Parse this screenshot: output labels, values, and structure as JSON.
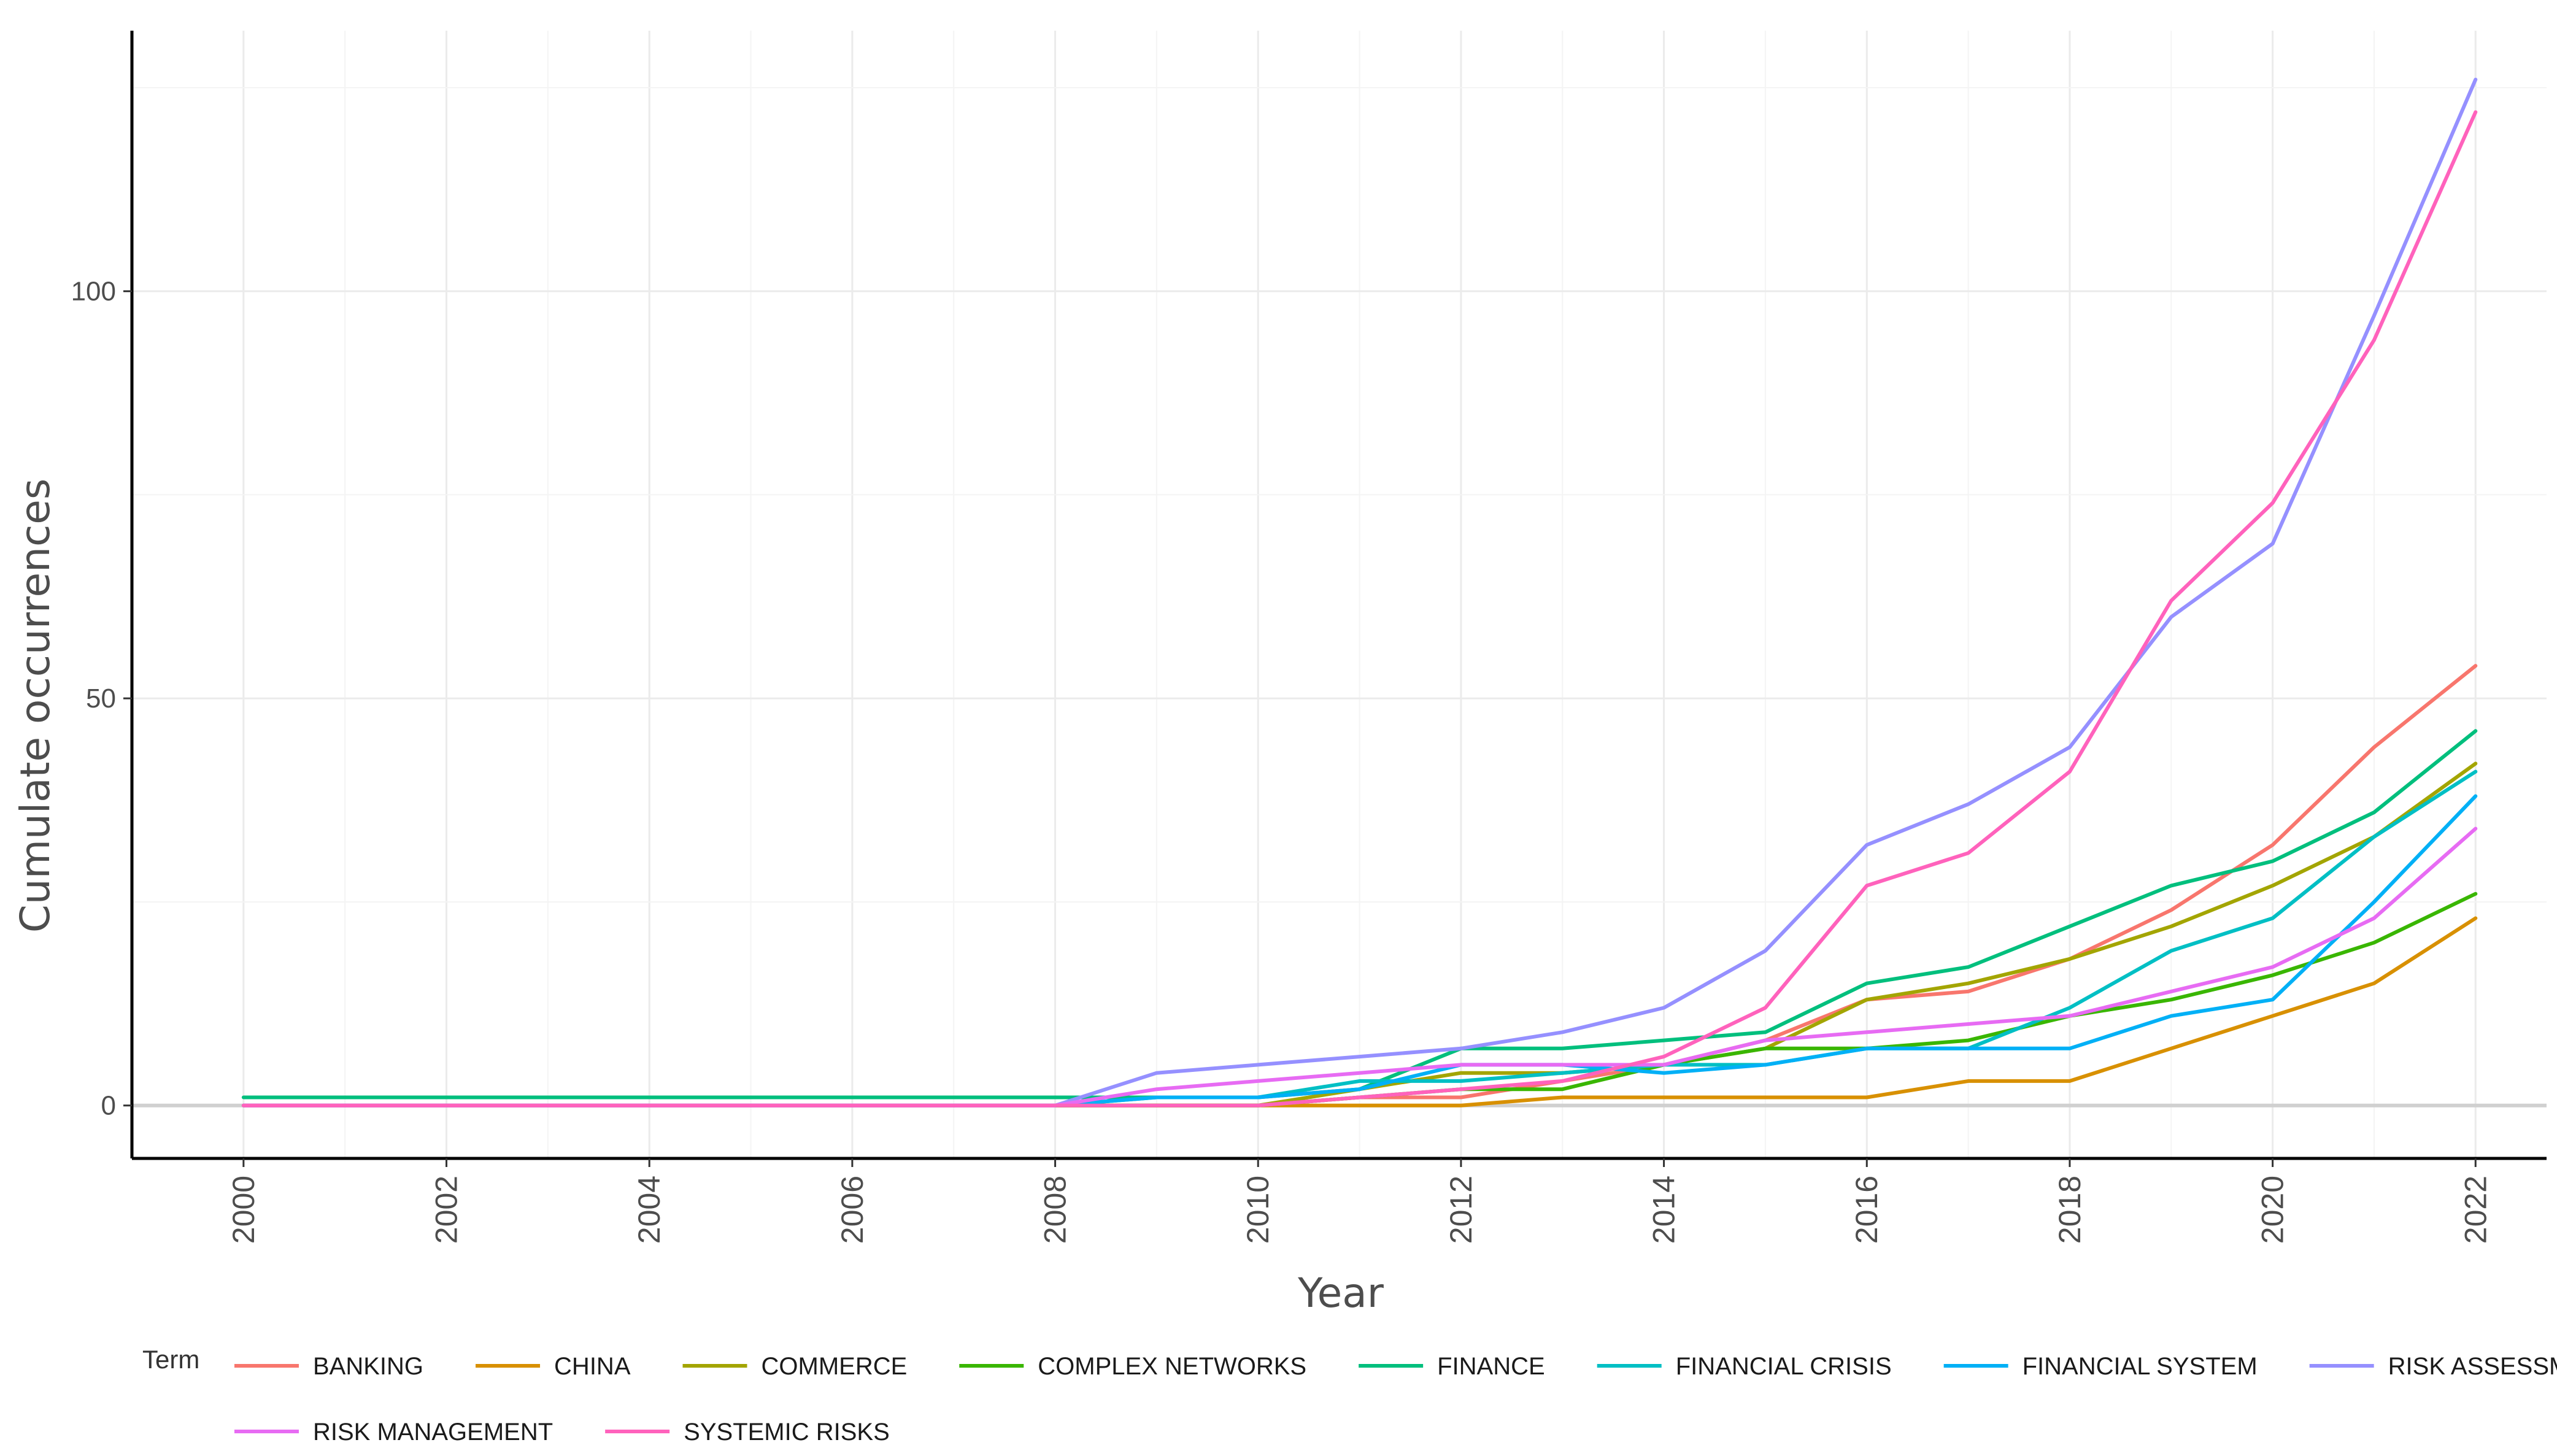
{
  "chart_data": {
    "type": "line",
    "title": "",
    "xlabel": "Year",
    "ylabel": "Cumulate occurrences",
    "x": [
      2000,
      2001,
      2002,
      2003,
      2004,
      2005,
      2006,
      2007,
      2008,
      2009,
      2010,
      2011,
      2012,
      2013,
      2014,
      2015,
      2016,
      2017,
      2018,
      2019,
      2020,
      2021,
      2022
    ],
    "xticks": [
      2000,
      2002,
      2004,
      2006,
      2008,
      2010,
      2012,
      2014,
      2016,
      2018,
      2020,
      2022
    ],
    "yticks": [
      0,
      50,
      100
    ],
    "xlim": [
      1998.9,
      2022.7
    ],
    "ylim": [
      -6.5,
      132
    ],
    "grid": true,
    "legend_title": "Term",
    "legend_position": "bottom",
    "series": [
      {
        "name": "BANKING",
        "color": "#F8766D",
        "values": [
          0,
          0,
          0,
          0,
          0,
          0,
          0,
          0,
          0,
          0,
          0,
          1,
          1,
          3,
          5,
          8,
          13,
          14,
          18,
          24,
          32,
          44,
          54
        ]
      },
      {
        "name": "CHINA",
        "color": "#D89000",
        "values": [
          0,
          0,
          0,
          0,
          0,
          0,
          0,
          0,
          0,
          0,
          0,
          0,
          0,
          1,
          1,
          1,
          1,
          3,
          3,
          7,
          11,
          15,
          23
        ]
      },
      {
        "name": "COMMERCE",
        "color": "#A3A500",
        "values": [
          0,
          0,
          0,
          0,
          0,
          0,
          0,
          0,
          0,
          0,
          0,
          2,
          4,
          4,
          5,
          7,
          13,
          15,
          18,
          22,
          27,
          33,
          42
        ]
      },
      {
        "name": "COMPLEX NETWORKS",
        "color": "#39B600",
        "values": [
          0,
          0,
          0,
          0,
          0,
          0,
          0,
          0,
          0,
          0,
          0,
          1,
          2,
          2,
          5,
          7,
          7,
          8,
          11,
          13,
          16,
          20,
          26
        ]
      },
      {
        "name": "FINANCE",
        "color": "#00BF7D",
        "values": [
          1,
          1,
          1,
          1,
          1,
          1,
          1,
          1,
          1,
          1,
          1,
          2,
          7,
          7,
          8,
          9,
          15,
          17,
          22,
          27,
          30,
          36,
          46
        ]
      },
      {
        "name": "FINANCIAL CRISIS",
        "color": "#00BFC4",
        "values": [
          0,
          0,
          0,
          0,
          0,
          0,
          0,
          0,
          0,
          1,
          1,
          3,
          3,
          4,
          5,
          5,
          7,
          7,
          12,
          19,
          23,
          33,
          41
        ]
      },
      {
        "name": "FINANCIAL SYSTEM",
        "color": "#00B0F6",
        "values": [
          0,
          0,
          0,
          0,
          0,
          0,
          0,
          0,
          0,
          1,
          1,
          2,
          5,
          5,
          4,
          5,
          7,
          7,
          7,
          11,
          13,
          25,
          38
        ]
      },
      {
        "name": "RISK ASSESSMENT",
        "color": "#9590FF",
        "values": [
          0,
          0,
          0,
          0,
          0,
          0,
          0,
          0,
          0,
          4,
          5,
          6,
          7,
          9,
          12,
          19,
          32,
          37,
          44,
          60,
          69,
          97,
          126
        ]
      },
      {
        "name": "RISK MANAGEMENT",
        "color": "#E76BF3",
        "values": [
          0,
          0,
          0,
          0,
          0,
          0,
          0,
          0,
          0,
          2,
          3,
          4,
          5,
          5,
          5,
          8,
          9,
          10,
          11,
          14,
          17,
          23,
          34
        ]
      },
      {
        "name": "SYSTEMIC RISKS",
        "color": "#FF62BC",
        "values": [
          0,
          0,
          0,
          0,
          0,
          0,
          0,
          0,
          0,
          0,
          0,
          1,
          2,
          3,
          6,
          12,
          27,
          31,
          41,
          62,
          74,
          94,
          122
        ]
      }
    ]
  }
}
